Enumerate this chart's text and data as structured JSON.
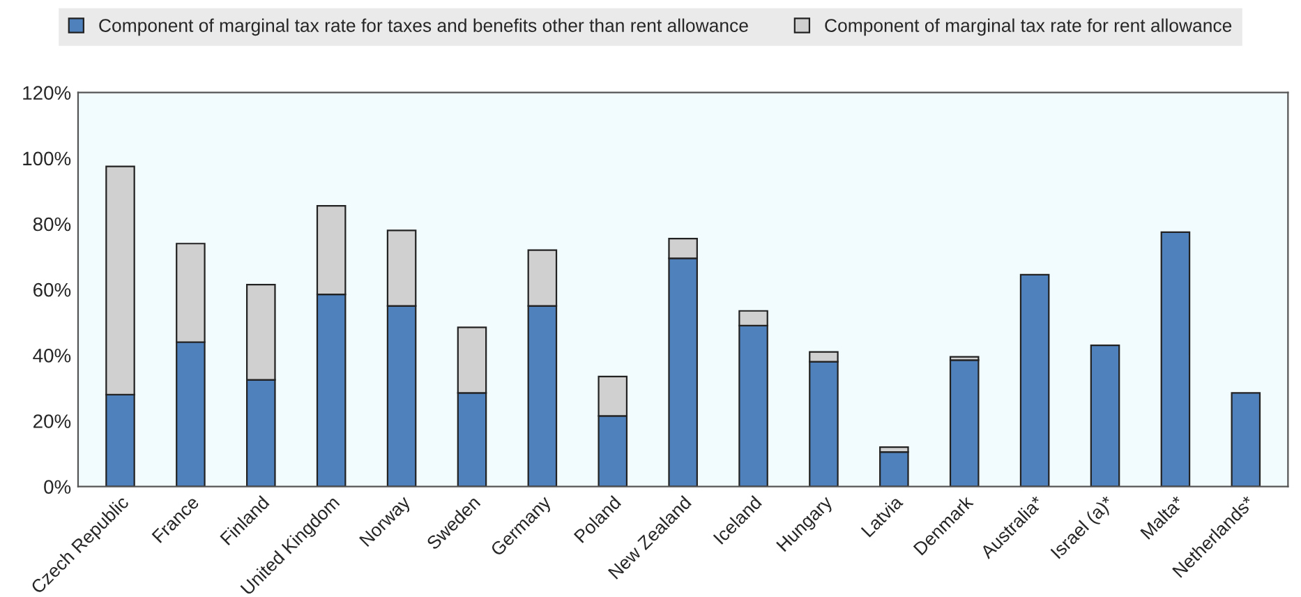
{
  "chart_data": {
    "type": "bar",
    "stacked": true,
    "categories": [
      "Czech Republic",
      "France",
      "Finland",
      "United Kingdom",
      "Norway",
      "Sweden",
      "Germany",
      "Poland",
      "New Zealand",
      "Iceland",
      "Hungary",
      "Latvia",
      "Denmark",
      "Australia*",
      "Israel (a)*",
      "Malta*",
      "Netherlands*"
    ],
    "series": [
      {
        "name": "Component of marginal tax rate for taxes and benefits other than rent allowance",
        "color": "#4f81bd",
        "values": [
          28,
          44,
          32.5,
          58.5,
          55,
          28.5,
          55,
          21.5,
          69.5,
          49,
          38,
          10.5,
          38.5,
          64.5,
          43,
          77.5,
          28.5
        ]
      },
      {
        "name": "Component of marginal tax rate for rent allowance",
        "color": "#d0d0d0",
        "values": [
          69.5,
          30,
          29,
          27,
          23,
          20,
          17,
          12,
          6,
          4.5,
          3,
          1.5,
          1,
          null,
          null,
          null,
          null
        ]
      }
    ],
    "ylim": [
      0,
      120
    ],
    "yticks": [
      {
        "value": 0,
        "label": "0%"
      },
      {
        "value": 20,
        "label": "20%"
      },
      {
        "value": 40,
        "label": "40%"
      },
      {
        "value": 60,
        "label": "60%"
      },
      {
        "value": 80,
        "label": "80%"
      },
      {
        "value": 100,
        "label": "100%"
      },
      {
        "value": 120,
        "label": "120%"
      }
    ],
    "grid": false,
    "legend": "top"
  }
}
